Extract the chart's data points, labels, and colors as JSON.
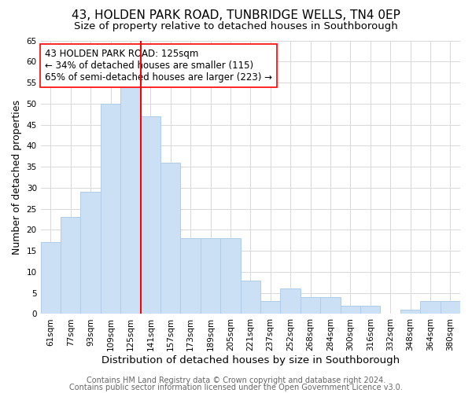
{
  "title": "43, HOLDEN PARK ROAD, TUNBRIDGE WELLS, TN4 0EP",
  "subtitle": "Size of property relative to detached houses in Southborough",
  "xlabel": "Distribution of detached houses by size in Southborough",
  "ylabel": "Number of detached properties",
  "footer_line1": "Contains HM Land Registry data © Crown copyright and database right 2024.",
  "footer_line2": "Contains public sector information licensed under the Open Government Licence v3.0.",
  "bar_labels": [
    "61sqm",
    "77sqm",
    "93sqm",
    "109sqm",
    "125sqm",
    "141sqm",
    "157sqm",
    "173sqm",
    "189sqm",
    "205sqm",
    "221sqm",
    "237sqm",
    "252sqm",
    "268sqm",
    "284sqm",
    "300sqm",
    "316sqm",
    "332sqm",
    "348sqm",
    "364sqm",
    "380sqm"
  ],
  "bar_heights": [
    17,
    23,
    29,
    50,
    54,
    47,
    36,
    18,
    18,
    18,
    8,
    3,
    6,
    4,
    4,
    2,
    2,
    0,
    1,
    3,
    3
  ],
  "bar_color": "#cce0f5",
  "bar_edge_color": "#b0cce8",
  "vline_x": 4.5,
  "vline_color": "red",
  "annotation_text": "43 HOLDEN PARK ROAD: 125sqm\n← 34% of detached houses are smaller (115)\n65% of semi-detached houses are larger (223) →",
  "annotation_box_edge_color": "red",
  "annotation_box_face_color": "white",
  "ylim": [
    0,
    65
  ],
  "yticks": [
    0,
    5,
    10,
    15,
    20,
    25,
    30,
    35,
    40,
    45,
    50,
    55,
    60,
    65
  ],
  "background_color": "#ffffff",
  "grid_color": "#d8d8d8",
  "title_fontsize": 11,
  "subtitle_fontsize": 9.5,
  "xlabel_fontsize": 9.5,
  "ylabel_fontsize": 9,
  "tick_fontsize": 7.5,
  "annotation_fontsize": 8.5,
  "footer_fontsize": 7
}
